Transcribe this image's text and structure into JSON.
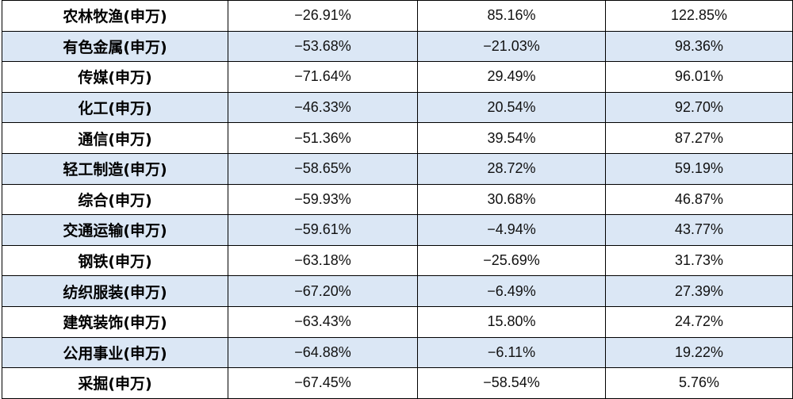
{
  "table": {
    "rows": [
      {
        "name": "农林牧渔(申万)",
        "v1": "−26.91%",
        "v2": "85.16%",
        "v3": "122.85%",
        "shaded": false
      },
      {
        "name": "有色金属(申万)",
        "v1": "−53.68%",
        "v2": "−21.03%",
        "v3": "98.36%",
        "shaded": true
      },
      {
        "name": "传媒(申万)",
        "v1": "−71.64%",
        "v2": "29.49%",
        "v3": "96.01%",
        "shaded": false
      },
      {
        "name": "化工(申万)",
        "v1": "−46.33%",
        "v2": "20.54%",
        "v3": "92.70%",
        "shaded": true
      },
      {
        "name": "通信(申万)",
        "v1": "−51.36%",
        "v2": "39.54%",
        "v3": "87.27%",
        "shaded": false
      },
      {
        "name": "轻工制造(申万)",
        "v1": "−58.65%",
        "v2": "28.72%",
        "v3": "59.19%",
        "shaded": true
      },
      {
        "name": "综合(申万)",
        "v1": "−59.93%",
        "v2": "30.68%",
        "v3": "46.87%",
        "shaded": false
      },
      {
        "name": "交通运输(申万)",
        "v1": "−59.61%",
        "v2": "−4.94%",
        "v3": "43.77%",
        "shaded": true
      },
      {
        "name": "钢铁(申万)",
        "v1": "−63.18%",
        "v2": "−25.69%",
        "v3": "31.73%",
        "shaded": false
      },
      {
        "name": "纺织服装(申万)",
        "v1": "−67.20%",
        "v2": "−6.49%",
        "v3": "27.39%",
        "shaded": true
      },
      {
        "name": "建筑装饰(申万)",
        "v1": "−63.43%",
        "v2": "15.80%",
        "v3": "24.72%",
        "shaded": false
      },
      {
        "name": "公用事业(申万)",
        "v1": "−64.88%",
        "v2": "−6.11%",
        "v3": "19.22%",
        "shaded": true
      },
      {
        "name": "采掘(申万)",
        "v1": "−67.45%",
        "v2": "−58.54%",
        "v3": "5.76%",
        "shaded": false
      }
    ]
  },
  "colors": {
    "shaded_row": "#dbe7f5",
    "plain_row": "#ffffff",
    "border": "#000000"
  }
}
